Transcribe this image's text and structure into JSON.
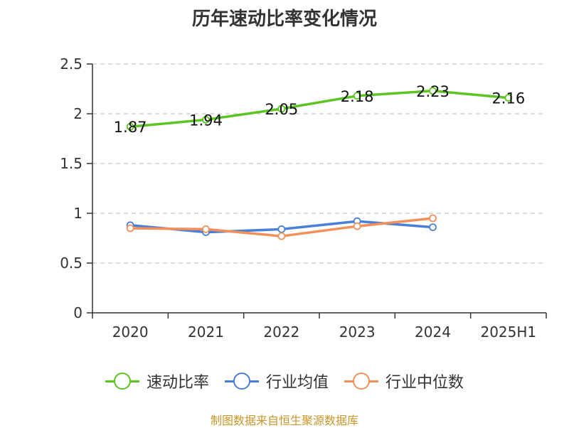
{
  "chart_data": {
    "type": "line",
    "title": "历年速动比率变化情况",
    "categories": [
      "2020",
      "2021",
      "2022",
      "2023",
      "2024",
      "2025H1"
    ],
    "ylim": [
      0,
      2.5
    ],
    "yticks": [
      0,
      0.5,
      1,
      1.5,
      2,
      2.5
    ],
    "ytick_labels": [
      "0",
      "0.5",
      "1",
      "1.5",
      "2",
      "2.5"
    ],
    "grid": true,
    "legend_position": "bottom",
    "series": [
      {
        "name": "速动比率",
        "color": "#5cc521",
        "values": [
          1.87,
          1.94,
          2.05,
          2.18,
          2.23,
          2.16
        ],
        "labels": [
          "1.87",
          "1.94",
          "2.05",
          "2.18",
          "2.23",
          "2.16"
        ]
      },
      {
        "name": "行业均值",
        "color": "#4a7fd9",
        "values": [
          0.88,
          0.81,
          0.84,
          0.92,
          0.86,
          null
        ]
      },
      {
        "name": "行业中位数",
        "color": "#f3905a",
        "values": [
          0.85,
          0.84,
          0.77,
          0.87,
          0.95,
          null
        ]
      }
    ]
  },
  "source": "制图数据来自恒生聚源数据库"
}
